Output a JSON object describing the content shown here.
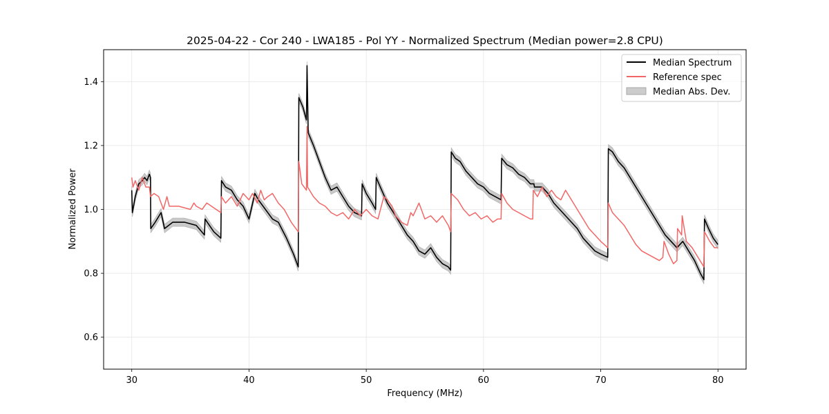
{
  "chart_data": {
    "type": "line",
    "title": "2025-04-22 - Cor 240 - LWA185 - Pol YY - Normalized Spectrum (Median power=2.8 CPU)",
    "xlabel": "Frequency (MHz)",
    "ylabel": "Normalized Power",
    "xlim": [
      27.6,
      82.4
    ],
    "ylim": [
      0.5,
      1.5
    ],
    "xticks": [
      30,
      40,
      50,
      60,
      70,
      80
    ],
    "yticks": [
      0.6,
      0.8,
      1.0,
      1.2,
      1.4
    ],
    "xtick_labels": [
      "30",
      "40",
      "50",
      "60",
      "70",
      "80"
    ],
    "ytick_labels": [
      "0.6",
      "0.8",
      "1.0",
      "1.2",
      "1.4"
    ],
    "grid": true,
    "legend_position": "top-right",
    "band_halfwidth": 0.013,
    "series": [
      {
        "name": "Median Spectrum",
        "color": "#000000",
        "x": [
          30.0,
          30.05,
          30.3,
          30.6,
          30.9,
          31.1,
          31.3,
          31.5,
          31.6,
          31.62,
          32.0,
          32.5,
          32.8,
          33.5,
          34.5,
          35.5,
          36.2,
          36.25,
          37.0,
          37.6,
          37.65,
          38.0,
          38.5,
          39.0,
          39.5,
          40.0,
          40.5,
          40.8,
          41.2,
          42.0,
          42.5,
          43.2,
          43.8,
          44.2,
          44.25,
          44.6,
          44.9,
          44.95,
          45.05,
          45.5,
          46.0,
          46.5,
          47.0,
          47.5,
          48.0,
          48.5,
          49.0,
          49.6,
          49.65,
          50.0,
          50.5,
          50.8,
          50.85,
          51.2,
          51.8,
          52.5,
          53.0,
          53.5,
          54.0,
          54.5,
          55.0,
          55.5,
          56.0,
          56.5,
          57.0,
          57.2,
          57.25,
          57.6,
          58.0,
          58.5,
          59.0,
          59.5,
          60.0,
          60.5,
          61.0,
          61.5,
          61.55,
          62.0,
          62.5,
          63.0,
          63.5,
          64.0,
          64.3,
          64.35,
          65.0,
          65.5,
          66.0,
          66.5,
          67.0,
          67.5,
          68.0,
          68.5,
          69.0,
          69.5,
          70.0,
          70.6,
          70.65,
          71.0,
          71.5,
          72.0,
          72.5,
          73.0,
          73.5,
          74.0,
          74.5,
          75.0,
          75.5,
          76.0,
          76.5,
          77.0,
          77.5,
          78.0,
          78.5,
          78.8,
          78.85,
          79.2,
          79.6,
          80.0
        ],
        "y": [
          1.06,
          0.99,
          1.04,
          1.08,
          1.09,
          1.1,
          1.09,
          1.11,
          1.1,
          0.94,
          0.96,
          0.99,
          0.94,
          0.96,
          0.96,
          0.95,
          0.92,
          0.97,
          0.93,
          0.91,
          1.09,
          1.07,
          1.06,
          1.03,
          1.01,
          0.97,
          1.05,
          1.03,
          1.01,
          0.97,
          0.96,
          0.91,
          0.86,
          0.82,
          1.35,
          1.32,
          1.28,
          1.45,
          1.24,
          1.2,
          1.15,
          1.1,
          1.06,
          1.07,
          1.04,
          1.01,
          0.99,
          0.98,
          1.08,
          1.05,
          1.02,
          1.0,
          1.1,
          1.07,
          1.02,
          0.98,
          0.95,
          0.92,
          0.9,
          0.87,
          0.86,
          0.88,
          0.85,
          0.83,
          0.82,
          0.81,
          1.18,
          1.16,
          1.15,
          1.12,
          1.1,
          1.08,
          1.07,
          1.05,
          1.04,
          1.03,
          1.16,
          1.14,
          1.13,
          1.11,
          1.1,
          1.08,
          1.08,
          1.07,
          1.07,
          1.05,
          1.02,
          1.0,
          0.98,
          0.96,
          0.94,
          0.91,
          0.89,
          0.87,
          0.86,
          0.85,
          1.19,
          1.18,
          1.15,
          1.13,
          1.1,
          1.07,
          1.04,
          1.01,
          0.98,
          0.95,
          0.92,
          0.9,
          0.88,
          0.9,
          0.87,
          0.84,
          0.8,
          0.78,
          0.97,
          0.94,
          0.91,
          0.89
        ]
      },
      {
        "name": "Reference spec",
        "color": "#f26666",
        "x": [
          30.0,
          30.1,
          30.3,
          30.6,
          30.9,
          31.2,
          31.5,
          31.6,
          31.9,
          32.3,
          32.7,
          33.0,
          33.2,
          34.0,
          35.0,
          35.3,
          35.5,
          36.0,
          36.4,
          36.8,
          37.2,
          37.6,
          37.65,
          38.0,
          38.5,
          39.0,
          39.5,
          40.0,
          40.3,
          40.7,
          41.0,
          41.3,
          41.6,
          42.0,
          42.5,
          43.0,
          43.6,
          44.2,
          44.25,
          44.5,
          44.9,
          44.95,
          45.0,
          45.5,
          46.0,
          46.5,
          47.0,
          47.5,
          48.0,
          48.5,
          49.0,
          49.5,
          50.0,
          50.5,
          51.0,
          51.5,
          51.8,
          52.2,
          52.5,
          53.0,
          53.5,
          53.8,
          54.0,
          54.5,
          55.0,
          55.5,
          56.0,
          56.5,
          57.0,
          57.2,
          57.25,
          57.8,
          58.3,
          58.8,
          59.3,
          59.8,
          60.3,
          60.8,
          61.2,
          61.5,
          61.55,
          62.0,
          62.5,
          63.0,
          63.5,
          64.0,
          64.2,
          64.25,
          64.6,
          65.0,
          65.4,
          65.8,
          66.2,
          66.6,
          67.0,
          67.5,
          68.0,
          68.5,
          69.0,
          69.5,
          70.0,
          70.6,
          70.65,
          71.0,
          71.5,
          72.0,
          72.5,
          73.0,
          73.5,
          74.0,
          74.5,
          75.0,
          75.3,
          75.4,
          75.8,
          76.2,
          76.5,
          76.55,
          76.9,
          76.95,
          77.3,
          77.8,
          78.3,
          78.8,
          78.85,
          79.3,
          79.7,
          80.0
        ],
        "y": [
          1.1,
          1.07,
          1.09,
          1.06,
          1.1,
          1.07,
          1.07,
          1.04,
          1.05,
          1.04,
          1.0,
          1.04,
          1.01,
          1.01,
          1.0,
          1.02,
          1.01,
          1.0,
          1.02,
          1.01,
          1.0,
          0.99,
          1.04,
          1.02,
          1.04,
          1.01,
          1.05,
          1.03,
          1.05,
          1.02,
          1.06,
          1.03,
          1.04,
          1.05,
          1.02,
          1.0,
          0.96,
          0.93,
          1.15,
          1.08,
          1.06,
          1.26,
          1.07,
          1.04,
          1.02,
          1.01,
          0.99,
          0.98,
          0.99,
          0.97,
          1.0,
          0.98,
          1.0,
          0.98,
          0.97,
          1.04,
          1.03,
          1.01,
          0.98,
          0.96,
          0.95,
          0.99,
          0.98,
          1.02,
          0.97,
          0.98,
          0.96,
          0.98,
          0.95,
          0.93,
          1.05,
          1.03,
          1.0,
          0.98,
          0.99,
          0.97,
          0.98,
          0.96,
          0.97,
          0.97,
          1.05,
          1.02,
          1.0,
          0.99,
          0.98,
          0.97,
          0.97,
          1.06,
          1.04,
          1.07,
          1.04,
          1.06,
          1.04,
          1.03,
          1.06,
          1.03,
          1.0,
          0.97,
          0.94,
          0.92,
          0.9,
          0.88,
          1.02,
          0.99,
          0.97,
          0.95,
          0.92,
          0.89,
          0.87,
          0.86,
          0.85,
          0.84,
          0.85,
          0.9,
          0.86,
          0.83,
          0.84,
          0.94,
          0.92,
          0.98,
          0.9,
          0.88,
          0.85,
          0.82,
          0.93,
          0.9,
          0.88,
          0.88
        ]
      }
    ],
    "legend": [
      "Median Spectrum",
      "Reference spec",
      "Median Abs. Dev."
    ]
  }
}
